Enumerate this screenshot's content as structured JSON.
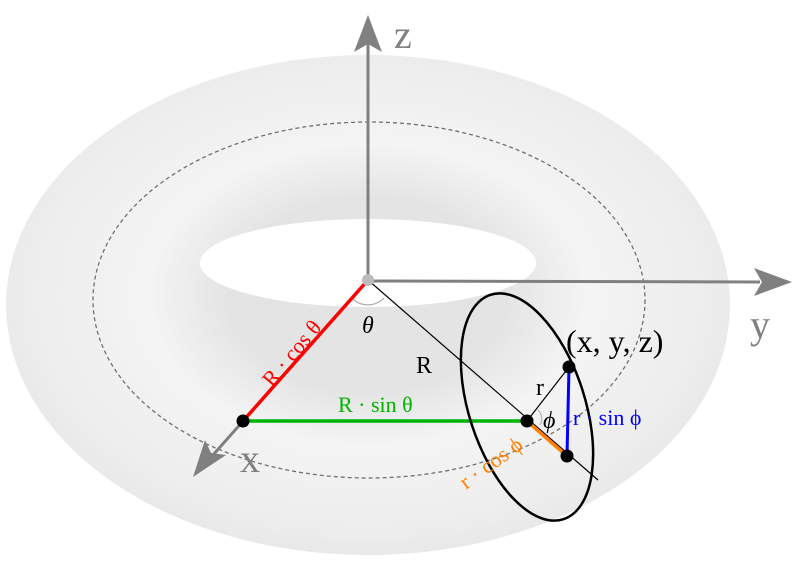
{
  "labels": {
    "z_axis": "z",
    "y_axis": "y",
    "x_axis": "x",
    "point": "(x, y, z)",
    "major_radius": "R",
    "minor_radius": "r",
    "theta": "θ",
    "phi": "ϕ",
    "r_cos_theta": "R · cos θ",
    "r_sin_theta": "R · sin θ",
    "minor_cos_phi": "r · cos ϕ",
    "minor_sin_phi": "r · sin ϕ"
  },
  "colors": {
    "axes": "#808080",
    "cos_theta": "#ff0000",
    "sin_theta": "#00b400",
    "cos_phi": "#ff7f00",
    "sin_phi": "#0000ff",
    "torus": "#efefef"
  }
}
